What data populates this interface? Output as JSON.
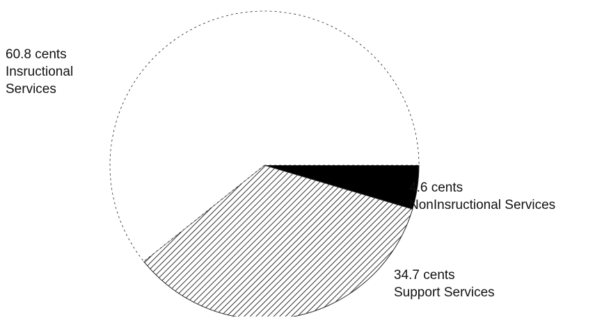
{
  "chart_data": {
    "type": "pie",
    "unit": "cents",
    "slices": [
      {
        "label": "Insructional Services",
        "value": 60.8,
        "value_label": "60.8 cents",
        "name_lines": [
          "Insructional",
          "Services"
        ],
        "fill": "white"
      },
      {
        "label": "NonInsructional Services",
        "value": 4.6,
        "value_label": "4.6 cents",
        "name_lines": [
          "NonInsructional Services"
        ],
        "fill": "solid-black"
      },
      {
        "label": "Support Services",
        "value": 34.7,
        "value_label": "34.7 cents",
        "name_lines": [
          "Support Services"
        ],
        "fill": "diagonal-hatch"
      }
    ],
    "title": "",
    "legend": "none",
    "colors": {
      "outline": "#222222",
      "black": "#000000",
      "hatch": "#1a1a1a",
      "text": "#111111"
    }
  }
}
